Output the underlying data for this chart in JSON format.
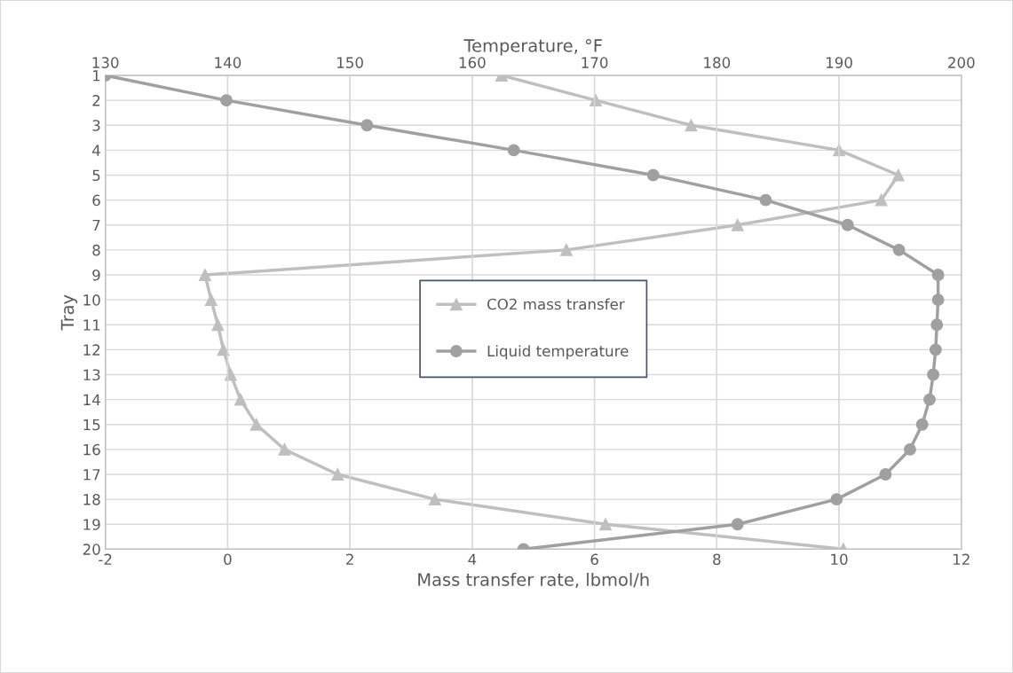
{
  "chart_data": {
    "type": "line",
    "orientation": "horizontal",
    "xlabel": "Mass transfer rate, lbmol/h",
    "x2label": "Temperature, °F",
    "ylabel": "Tray",
    "categories": [
      "1",
      "2",
      "3",
      "4",
      "5",
      "6",
      "7",
      "8",
      "9",
      "10",
      "11",
      "12",
      "13",
      "14",
      "15",
      "16",
      "17",
      "18",
      "19",
      "20"
    ],
    "xlim": [
      -2,
      12
    ],
    "xticks": [
      -2,
      0,
      2,
      4,
      6,
      8,
      10,
      12
    ],
    "x2lim": [
      130,
      200
    ],
    "x2ticks": [
      130,
      140,
      150,
      160,
      170,
      180,
      190,
      200
    ],
    "grid": true,
    "legend": "center",
    "series": [
      {
        "name": "CO2 mass transfer",
        "color": "#bfbfbf",
        "marker": "triangle",
        "values": [
          4.48,
          6.02,
          7.58,
          10.0,
          10.97,
          10.69,
          8.34,
          5.54,
          -0.37,
          -0.27,
          -0.16,
          -0.07,
          0.05,
          0.21,
          0.47,
          0.93,
          1.8,
          3.39,
          6.18,
          10.07
        ]
      },
      {
        "name": "Liquid temperature",
        "color": "#a0a0a0",
        "marker": "circle",
        "axis": "x2",
        "values": [
          130,
          139.9,
          151.4,
          163.4,
          174.8,
          184.0,
          190.7,
          194.9,
          198.1,
          198.1,
          198.0,
          197.9,
          197.7,
          197.4,
          196.8,
          195.8,
          193.8,
          189.8,
          181.7,
          164.2
        ]
      }
    ]
  }
}
